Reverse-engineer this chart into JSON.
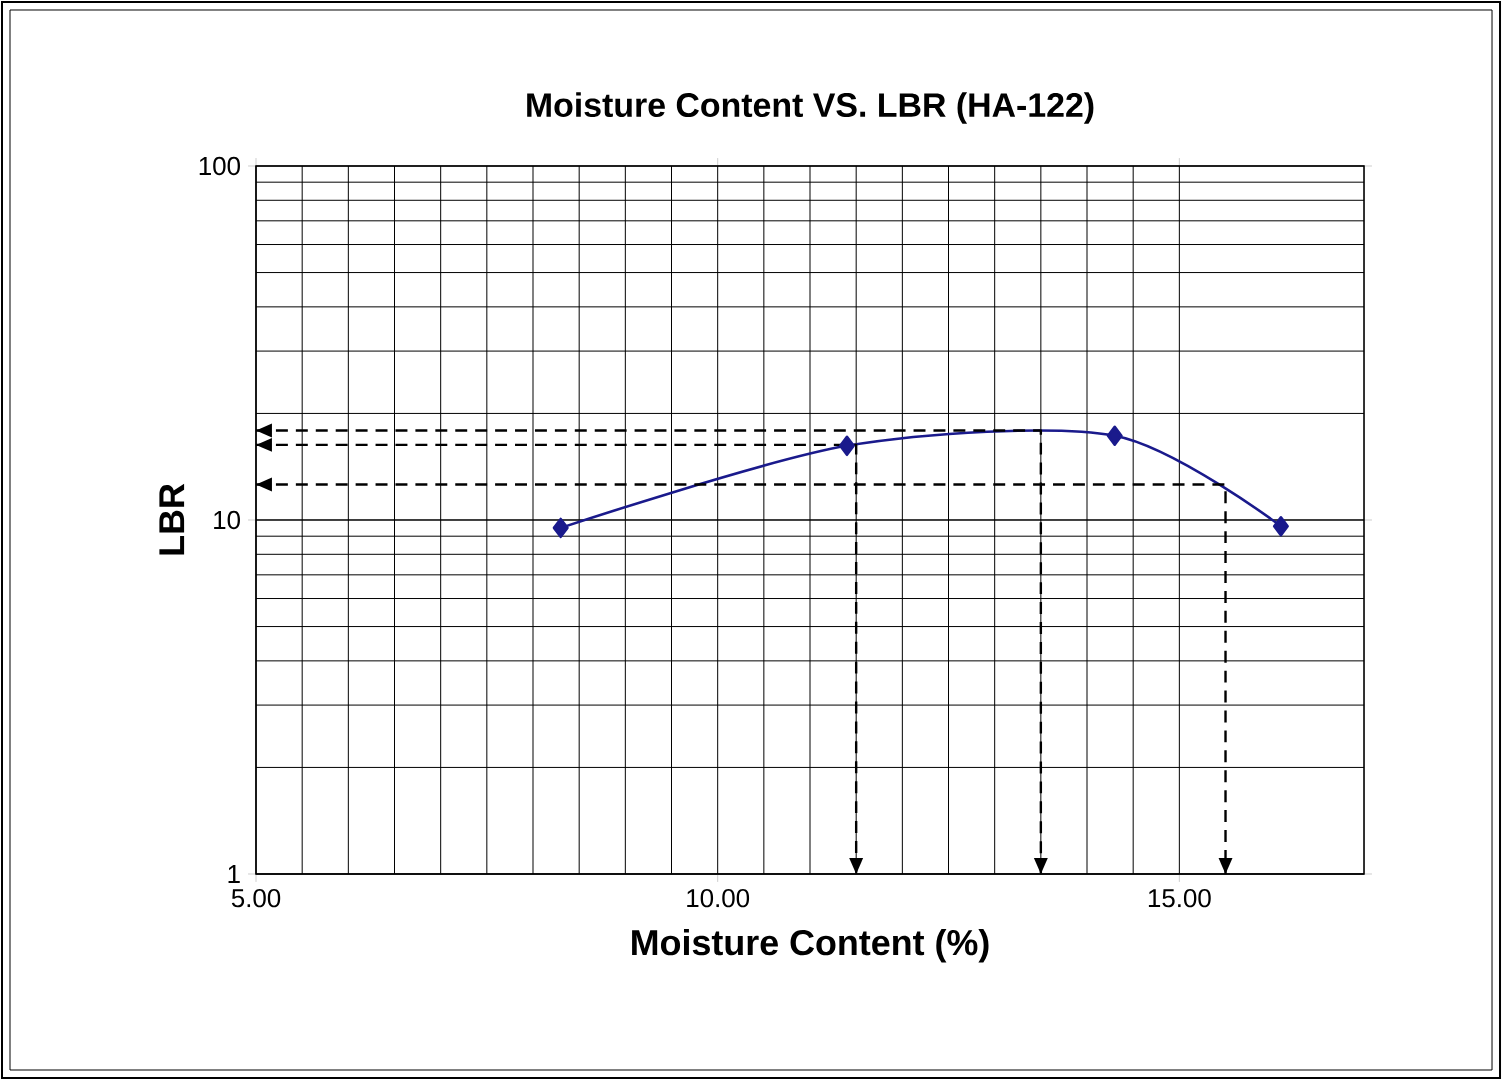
{
  "chart_data": {
    "type": "line",
    "title": "Moisture Content VS. LBR (HA-122)",
    "xlabel": "Moisture Content (%)",
    "ylabel": "LBR",
    "xlim": [
      5,
      17
    ],
    "ylim": [
      1,
      100
    ],
    "xticks": [
      {
        "value": 5,
        "label": "5.00"
      },
      {
        "value": 10,
        "label": "10.00"
      },
      {
        "value": 15,
        "label": "15.00"
      }
    ],
    "yticks": [
      1,
      10,
      100
    ],
    "log": "y",
    "grid": true,
    "marker": "diamond",
    "line_style": "solid",
    "series": [
      {
        "color": "#1a1a8c",
        "x": [
          8.3,
          11.4,
          14.3,
          16.1
        ],
        "values": [
          9.5,
          16.2,
          17.3,
          9.6
        ]
      },
      {
        "color": "#000000",
        "marker": "none",
        "line_style": "dashed",
        "x": [
          5,
          13.5,
          13.5
        ],
        "values": [
          17.9,
          17.9,
          1
        ]
      },
      {
        "color": "#000000",
        "marker": "none",
        "line_style": "dashed",
        "x": [
          5,
          11.5,
          11.5
        ],
        "values": [
          16.3,
          16.3,
          1
        ]
      },
      {
        "color": "#000000",
        "marker": "none",
        "line_style": "dashed",
        "x": [
          5,
          15.5,
          15.5
        ],
        "values": [
          12.6,
          12.6,
          1
        ]
      }
    ]
  }
}
